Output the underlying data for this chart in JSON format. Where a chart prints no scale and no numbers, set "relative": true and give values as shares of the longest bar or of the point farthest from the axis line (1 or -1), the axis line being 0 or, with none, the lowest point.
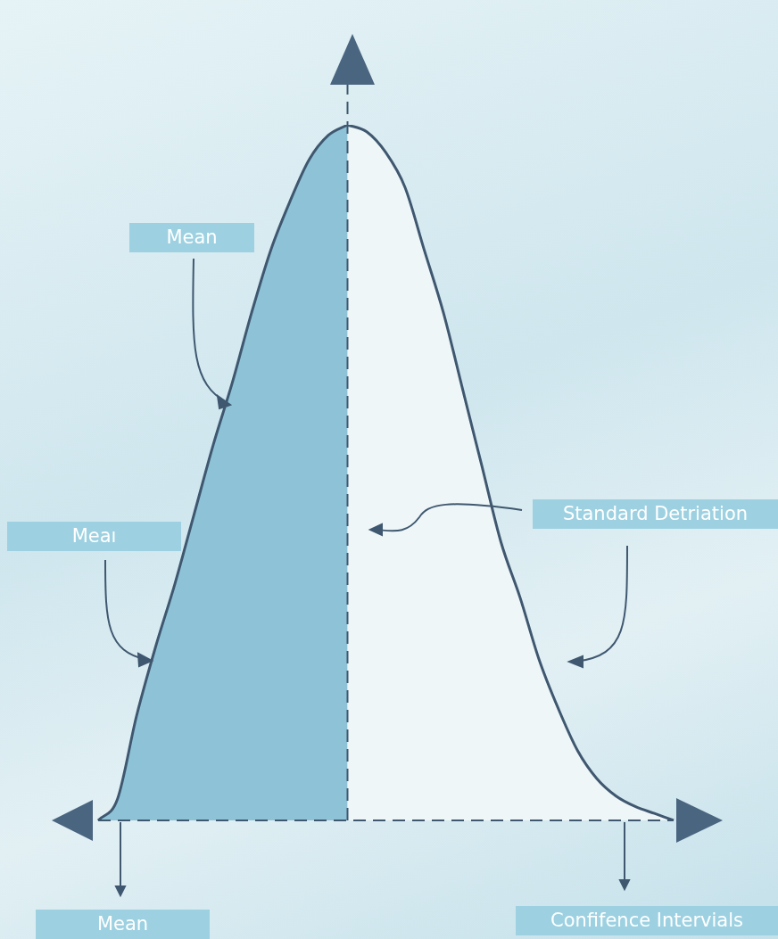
{
  "chart_data": {
    "type": "area",
    "relative": true,
    "categories": [
      null,
      null,
      null,
      null,
      null,
      null,
      null,
      null,
      null,
      null,
      null,
      null,
      null,
      null,
      null,
      null,
      null,
      null,
      null,
      null,
      null,
      null,
      null,
      null,
      null,
      null,
      null,
      null,
      null,
      null,
      null
    ],
    "series": [
      {
        "color": "#8ec3d7",
        "values": [
          0,
          0.03,
          0.15,
          0.25,
          0.34,
          0.44,
          0.54,
          0.63,
          0.73,
          0.82,
          0.89,
          0.95,
          0.985,
          1,
          null,
          null,
          null,
          null,
          null,
          null,
          null,
          null,
          null,
          null,
          null,
          null,
          null,
          null,
          null,
          null,
          null
        ]
      },
      {
        "color": "#eef6f8",
        "values": [
          null,
          null,
          null,
          null,
          null,
          null,
          null,
          null,
          null,
          null,
          null,
          null,
          null,
          1,
          0.99,
          0.96,
          0.91,
          0.82,
          0.73,
          0.62,
          0.51,
          0.4,
          0.32,
          0.23,
          0.16,
          0.1,
          0.06,
          0.035,
          0.02,
          0.01,
          0
        ]
      }
    ],
    "annotations": [
      "Mean",
      "Meaı",
      "Standard Detriation",
      "Mean",
      "Confifence Intervials"
    ]
  }
}
